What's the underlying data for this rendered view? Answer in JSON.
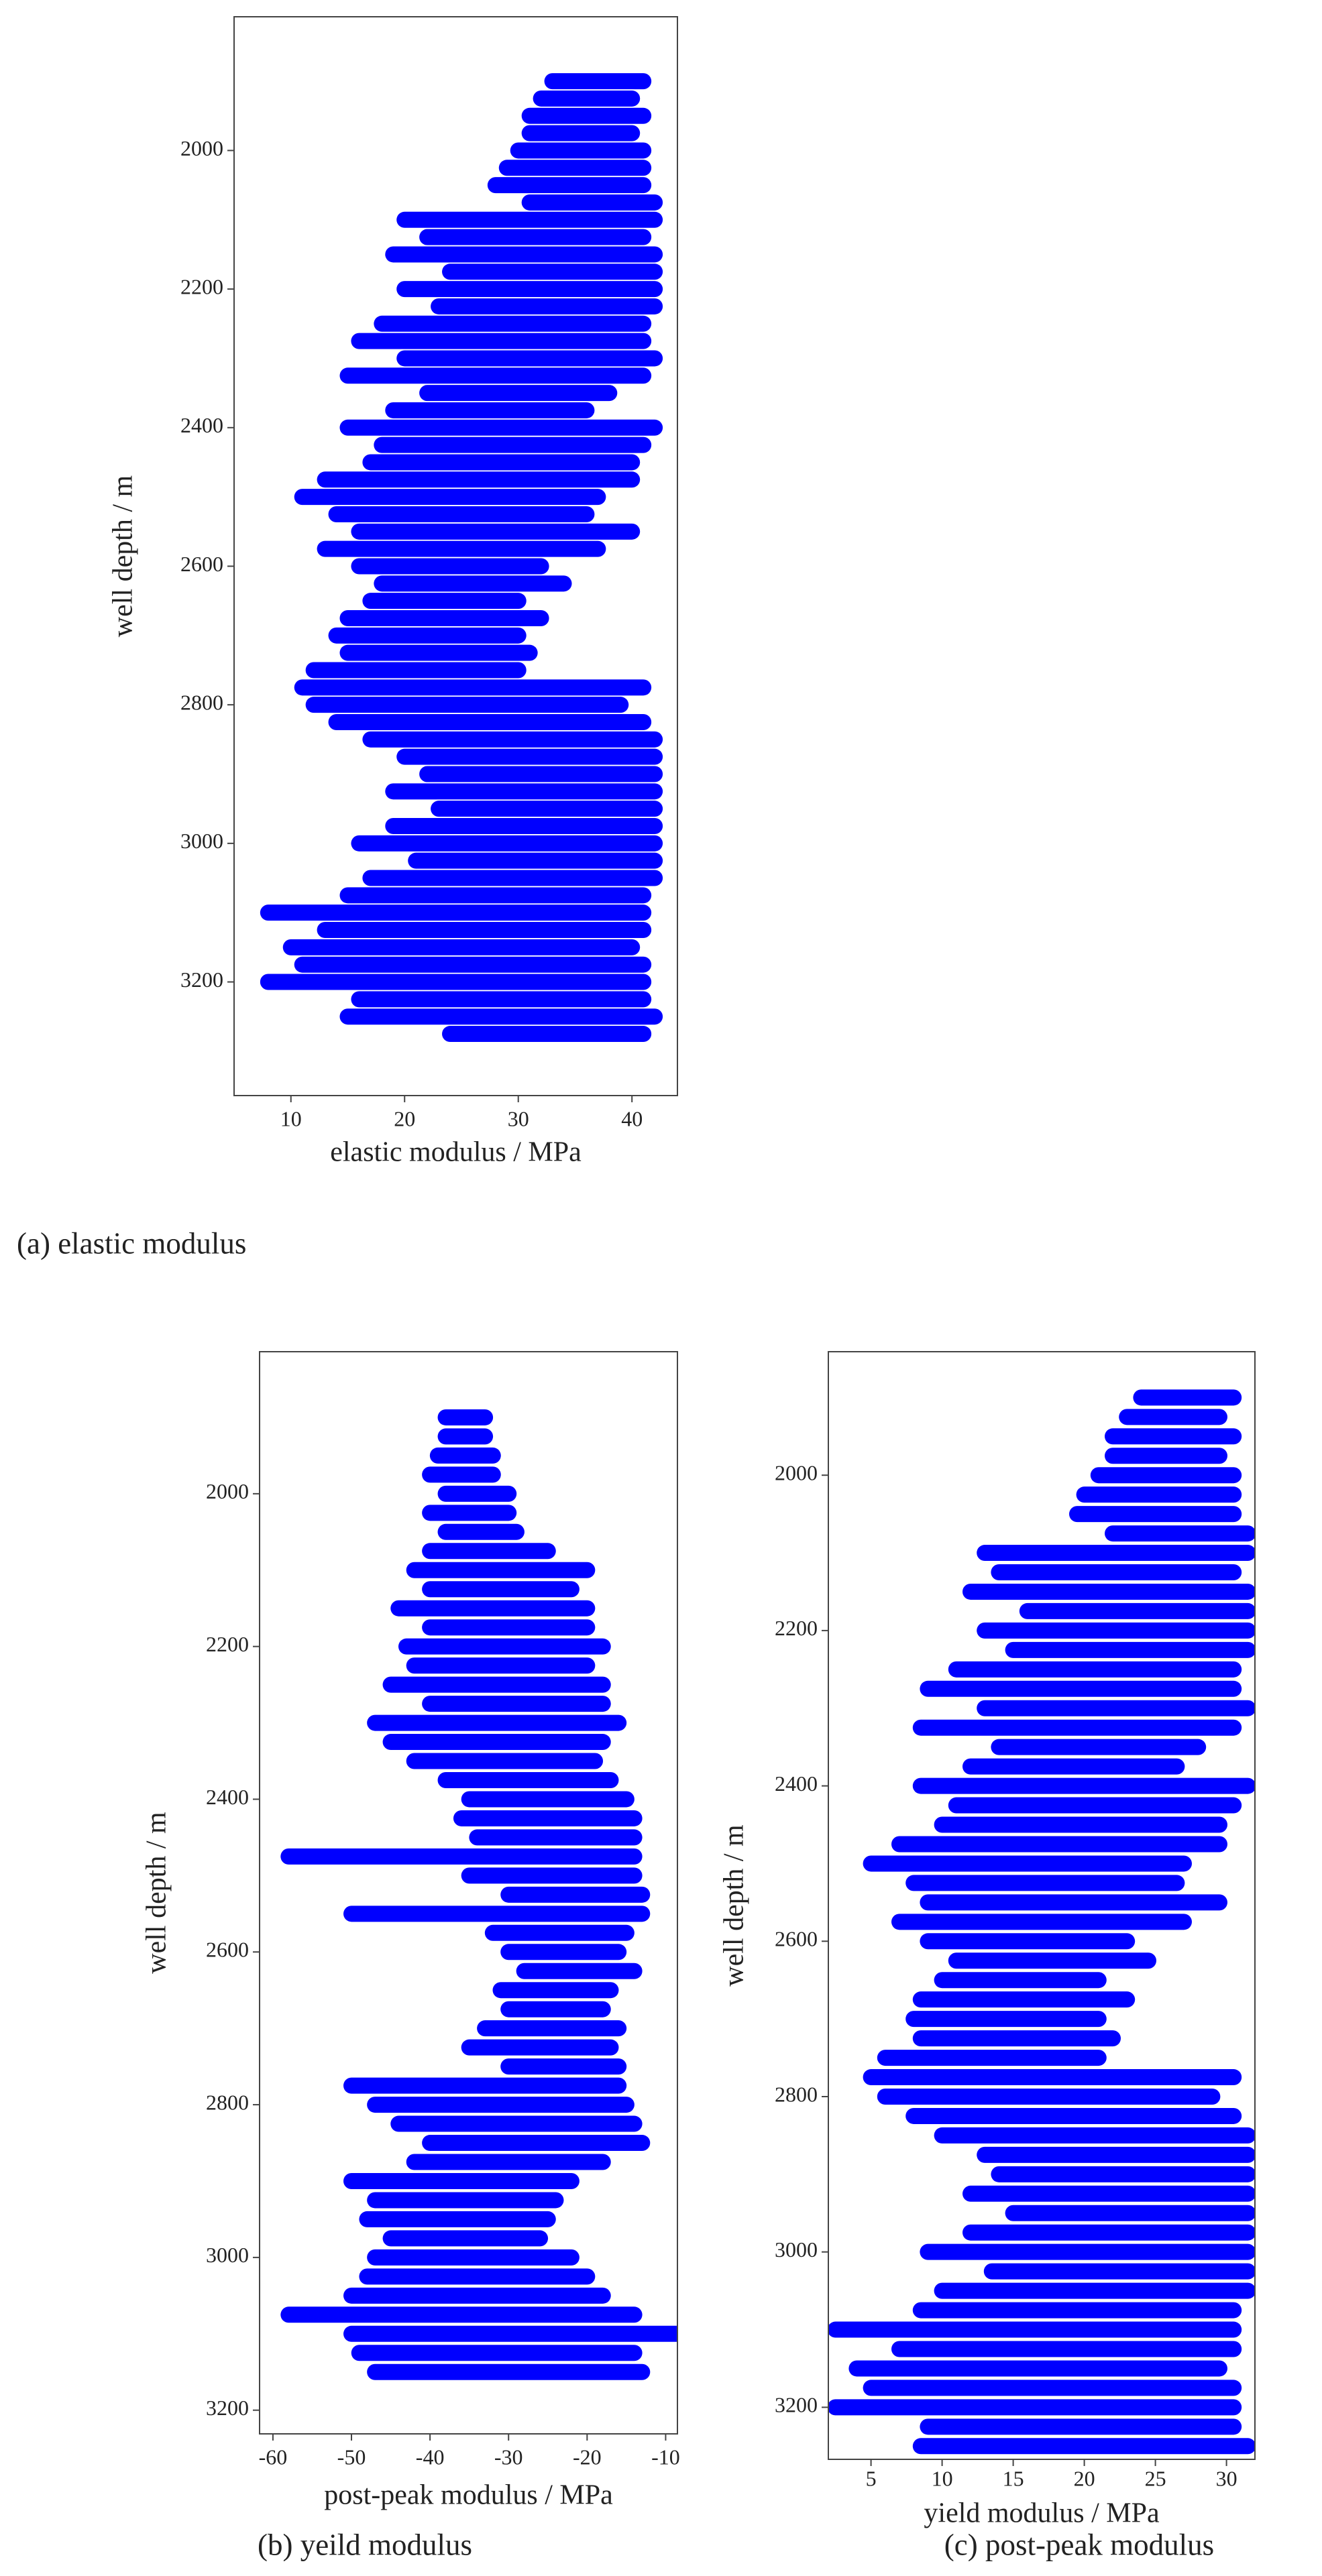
{
  "chart_data": [
    {
      "type": "range-scatter",
      "caption": "(a)   elastic modulus",
      "x_label": "elastic modulus / MPa",
      "y_label": "well depth / m",
      "xlim": [
        5,
        44
      ],
      "ylim": [
        1807,
        3364
      ],
      "y_inverted": true,
      "xticks": [
        10,
        20,
        30,
        40
      ],
      "yticks": [
        2000,
        2200,
        2400,
        2600,
        2800,
        3000,
        3200
      ],
      "series": [
        {
          "color": "#0000ff",
          "depths": [
            1900,
            1925,
            1950,
            1975,
            2000,
            2025,
            2050,
            2075,
            2100,
            2125,
            2150,
            2175,
            2200,
            2225,
            2250,
            2275,
            2300,
            2325,
            2350,
            2375,
            2400,
            2425,
            2450,
            2475,
            2500,
            2525,
            2550,
            2575,
            2600,
            2625,
            2650,
            2675,
            2700,
            2725,
            2750,
            2775,
            2800,
            2825,
            2850,
            2875,
            2900,
            2925,
            2950,
            2975,
            3000,
            3025,
            3050,
            3075,
            3100,
            3125,
            3150,
            3175,
            3200,
            3225,
            3250,
            3275
          ],
          "x_min": [
            33,
            32,
            31,
            31,
            30,
            29,
            28,
            31,
            20,
            22,
            19,
            24,
            20,
            23,
            18,
            16,
            20,
            15,
            22,
            19,
            15,
            18,
            17,
            13,
            11,
            14,
            16,
            13,
            16,
            18,
            17,
            15,
            14,
            15,
            12,
            11,
            12,
            14,
            17,
            20,
            22,
            19,
            23,
            19,
            16,
            21,
            17,
            15,
            8,
            13,
            10,
            11,
            8,
            16,
            15,
            24
          ],
          "x_max": [
            41,
            40,
            41,
            40,
            41,
            41,
            41,
            42,
            42,
            41,
            42,
            42,
            42,
            42,
            41,
            41,
            42,
            41,
            38,
            36,
            42,
            41,
            40,
            40,
            37,
            36,
            40,
            37,
            32,
            34,
            30,
            32,
            30,
            31,
            30,
            41,
            39,
            41,
            42,
            42,
            42,
            42,
            42,
            42,
            42,
            42,
            42,
            41,
            41,
            41,
            40,
            41,
            41,
            41,
            42,
            41
          ]
        }
      ]
    },
    {
      "type": "range-scatter",
      "caption": "(b) yeild modulus",
      "x_label": "post-peak modulus / MPa",
      "y_label": "well depth / m",
      "xlim": [
        -61.7,
        -8.5
      ],
      "ylim": [
        1814,
        3231
      ],
      "y_inverted": true,
      "xticks": [
        -60,
        -50,
        -40,
        -30,
        -20,
        -10
      ],
      "yticks": [
        2000,
        2200,
        2400,
        2600,
        2800,
        3000,
        3200
      ],
      "series": [
        {
          "color": "#0000ff",
          "depths": [
            1900,
            1925,
            1950,
            1975,
            2000,
            2025,
            2050,
            2075,
            2100,
            2125,
            2150,
            2175,
            2200,
            2225,
            2250,
            2275,
            2300,
            2325,
            2350,
            2375,
            2400,
            2425,
            2450,
            2475,
            2500,
            2525,
            2550,
            2575,
            2600,
            2625,
            2650,
            2675,
            2700,
            2725,
            2750,
            2775,
            2800,
            2825,
            2850,
            2875,
            2900,
            2925,
            2950,
            2975,
            3000,
            3025,
            3050,
            3075,
            3100,
            3125,
            3150
          ],
          "x_min": [
            -38,
            -38,
            -39,
            -40,
            -38,
            -40,
            -38,
            -40,
            -42,
            -40,
            -44,
            -40,
            -43,
            -42,
            -45,
            -40,
            -47,
            -45,
            -42,
            -38,
            -35,
            -36,
            -34,
            -58,
            -35,
            -30,
            -50,
            -32,
            -30,
            -28,
            -31,
            -30,
            -33,
            -35,
            -30,
            -50,
            -47,
            -44,
            -40,
            -42,
            -50,
            -47,
            -48,
            -45,
            -47,
            -48,
            -50,
            -58,
            -50,
            -49,
            -47
          ],
          "x_max": [
            -33,
            -33,
            -32,
            -32,
            -30,
            -30,
            -29,
            -25,
            -20,
            -22,
            -20,
            -20,
            -18,
            -20,
            -18,
            -18,
            -16,
            -18,
            -19,
            -17,
            -15,
            -14,
            -14,
            -14,
            -14,
            -13,
            -13,
            -15,
            -16,
            -14,
            -17,
            -18,
            -16,
            -17,
            -16,
            -16,
            -15,
            -14,
            -13,
            -18,
            -22,
            -24,
            -25,
            -26,
            -22,
            -20,
            -18,
            -14,
            -8,
            -14,
            -13
          ]
        }
      ]
    },
    {
      "type": "range-scatter",
      "caption": "(c) post-peak modulus",
      "x_label": "yield modulus / MPa",
      "y_label": "well depth / m",
      "xlim": [
        2,
        32
      ],
      "ylim": [
        1841,
        3267
      ],
      "y_inverted": true,
      "xticks": [
        5,
        10,
        15,
        20,
        25,
        30
      ],
      "yticks": [
        2000,
        2200,
        2400,
        2600,
        2800,
        3000,
        3200
      ],
      "series": [
        {
          "color": "#0000ff",
          "depths": [
            1900,
            1925,
            1950,
            1975,
            2000,
            2025,
            2050,
            2075,
            2100,
            2125,
            2150,
            2175,
            2200,
            2225,
            2250,
            2275,
            2300,
            2325,
            2350,
            2375,
            2400,
            2425,
            2450,
            2475,
            2500,
            2525,
            2550,
            2575,
            2600,
            2625,
            2650,
            2675,
            2700,
            2725,
            2750,
            2775,
            2800,
            2825,
            2850,
            2875,
            2900,
            2925,
            2950,
            2975,
            3000,
            3025,
            3050,
            3075,
            3100,
            3125,
            3150,
            3175,
            3200,
            3225,
            3250
          ],
          "x_min": [
            24,
            23,
            22,
            22,
            21,
            20,
            19.5,
            22,
            13,
            14,
            12,
            16,
            13,
            15,
            11,
            9,
            13,
            8.5,
            14,
            12,
            8.5,
            11,
            10,
            7,
            5,
            8,
            9,
            7,
            9,
            11,
            10,
            8.5,
            8,
            8.5,
            6,
            5,
            6,
            8,
            10,
            13,
            14,
            12,
            15,
            12,
            9,
            13.5,
            10,
            8.5,
            2.5,
            7,
            4,
            5,
            2.5,
            9,
            8.5
          ],
          "x_max": [
            30.5,
            29.5,
            30.5,
            29.5,
            30.5,
            30.5,
            30.5,
            31.5,
            31.5,
            30.5,
            31.5,
            31.5,
            31.5,
            31.5,
            30.5,
            30.5,
            31.5,
            30.5,
            28,
            26.5,
            31.5,
            30.5,
            29.5,
            29.5,
            27,
            26.5,
            29.5,
            27,
            23,
            24.5,
            21,
            23,
            21,
            22,
            21,
            30.5,
            29,
            30.5,
            31.5,
            31.5,
            31.5,
            31.5,
            31.5,
            31.5,
            31.5,
            31.5,
            31.5,
            30.5,
            30.5,
            30.5,
            29.5,
            30.5,
            30.5,
            30.5,
            31.5
          ]
        }
      ]
    }
  ]
}
